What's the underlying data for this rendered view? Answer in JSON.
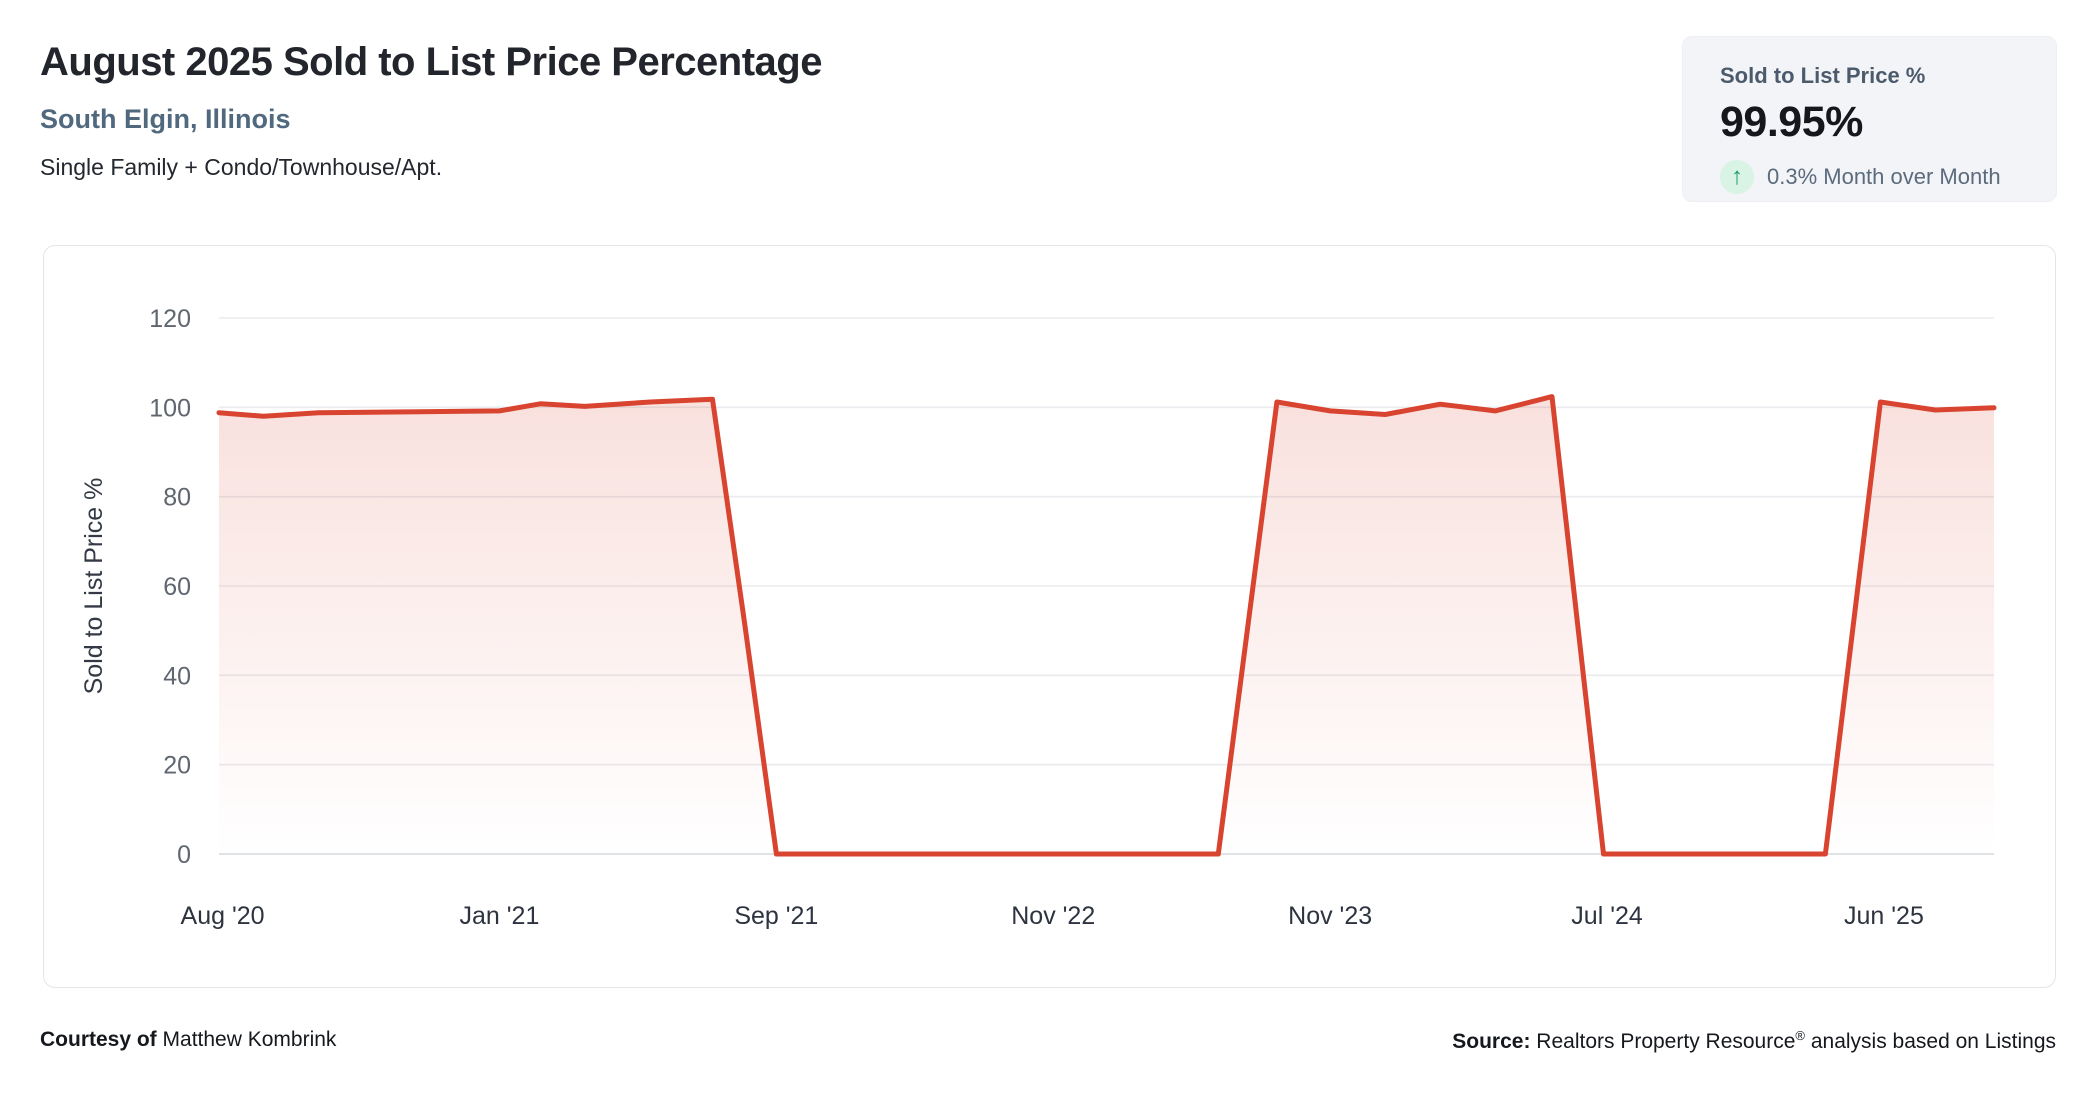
{
  "header": {
    "title": "August 2025 Sold to List Price Percentage",
    "location": "South Elgin, Illinois",
    "property_types": "Single Family + Condo/Townhouse/Apt."
  },
  "stat_card": {
    "label": "Sold to List Price %",
    "value": "99.95%",
    "change_direction": "up",
    "change_arrow": "↑",
    "change_text": "0.3% Month over Month",
    "change_color": "#1d9e63",
    "change_bg": "#d9f3e5"
  },
  "footer": {
    "courtesy_label": "Courtesy of",
    "courtesy_name": "Matthew Kombrink",
    "source_label": "Source:",
    "source_name": "Realtors Property Resource",
    "source_reg": "®",
    "source_suffix": "analysis based on Listings"
  },
  "chart_data": {
    "type": "area",
    "title": "August 2025 Sold to List Price Percentage",
    "xlabel": "",
    "ylabel": "Sold to List Price %",
    "ylim": [
      0,
      120
    ],
    "y_ticks": [
      0,
      20,
      40,
      60,
      80,
      100,
      120
    ],
    "grid": true,
    "legend": "none",
    "x_tick_labels": [
      "Aug '20",
      "Jan '21",
      "Sep '21",
      "Nov '22",
      "Nov '23",
      "Jul '24",
      "Jun '25"
    ],
    "x_tick_pos_pct": [
      0.2,
      15.8,
      31.4,
      47.0,
      62.6,
      78.2,
      93.8
    ],
    "line_color": "#d8442f",
    "fill_color": "#d8432f",
    "fill_opacity_top": 0.19,
    "series": [
      {
        "name": "Sold to List Price %",
        "points_x_pct_y_value": [
          [
            0.0,
            98.8
          ],
          [
            2.5,
            98.0
          ],
          [
            5.6,
            98.8
          ],
          [
            11.3,
            99.0
          ],
          [
            15.8,
            99.2
          ],
          [
            18.1,
            100.8
          ],
          [
            20.6,
            100.2
          ],
          [
            24.3,
            101.2
          ],
          [
            27.8,
            101.8
          ],
          [
            29.6,
            52.0
          ],
          [
            31.4,
            0.0
          ],
          [
            56.3,
            0.0
          ],
          [
            59.6,
            101.2
          ],
          [
            62.6,
            99.2
          ],
          [
            65.7,
            98.4
          ],
          [
            68.8,
            100.7
          ],
          [
            71.9,
            99.2
          ],
          [
            75.1,
            102.4
          ],
          [
            78.0,
            0.0
          ],
          [
            90.5,
            0.0
          ],
          [
            93.6,
            101.2
          ],
          [
            96.7,
            99.4
          ],
          [
            100.0,
            99.9
          ]
        ]
      }
    ]
  }
}
